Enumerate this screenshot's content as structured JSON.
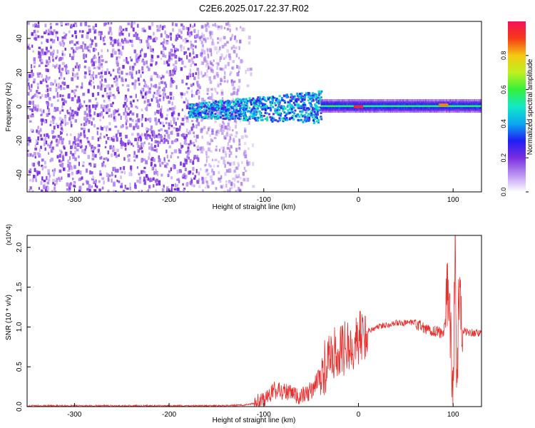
{
  "title": "C2E6.2025.017.22.37.R02",
  "colors": {
    "snr_line": "#e8312f",
    "noise": "#7a2ee0",
    "noise_light": "#c9a8f2",
    "axes": "#000000"
  },
  "chart_data": [
    {
      "type": "heatmap",
      "title": "C2E6.2025.017.22.37.R02",
      "xlabel": "Height of straight line (km)",
      "ylabel": "Frequency (Hz)",
      "xlim": [
        -350,
        130
      ],
      "ylim": [
        -50,
        50
      ],
      "x_ticks": [
        -300,
        -200,
        -100,
        0,
        100
      ],
      "y_ticks": [
        -40,
        -20,
        0,
        20,
        40
      ],
      "grid": false,
      "colorbar": {
        "label": "Normalized spectral amplitude",
        "range": [
          0,
          1
        ],
        "ticks": [
          "0.0",
          "0.2",
          "0.4",
          "0.6",
          "0.8"
        ],
        "colormap": "rainbow (purple to red)"
      },
      "features": [
        {
          "x_range": [
            -350,
            -130
          ],
          "description": "broadband noise across all frequencies",
          "amplitude": 0.1
        },
        {
          "x_range": [
            -180,
            -40
          ],
          "freq_range": [
            -10,
            8
          ],
          "description": "signal band emerging",
          "amplitude": 0.35
        },
        {
          "x_range": [
            -40,
            130
          ],
          "freq_range": [
            -4,
            4
          ],
          "description": "narrow carrier line near 0 Hz",
          "amplitude": 0.5
        },
        {
          "x_range": [
            -5,
            5
          ],
          "freq": 0,
          "amplitude": 0.95
        },
        {
          "x_range": [
            85,
            95
          ],
          "freq": 1,
          "amplitude": 0.85
        }
      ]
    },
    {
      "type": "line",
      "xlabel": "Height of straight line (km)",
      "ylabel": "SNR (10 * v/v)",
      "y_multiplier_label": "(x10^4)",
      "xlim": [
        -350,
        130
      ],
      "ylim": [
        0,
        2.15
      ],
      "x_ticks": [
        -300,
        -200,
        -100,
        0,
        100
      ],
      "y_ticks": [
        "0.0",
        "0.5",
        "1.0",
        "1.5",
        "2.0"
      ],
      "grid": false,
      "series": [
        {
          "color": "#e8312f",
          "x": [
            -350,
            -250,
            -150,
            -120,
            -100,
            -90,
            -80,
            -70,
            -60,
            -50,
            -40,
            -30,
            -20,
            -10,
            0,
            10,
            20,
            30,
            40,
            50,
            60,
            70,
            80,
            90,
            95,
            100,
            102,
            104,
            106,
            110,
            120,
            130
          ],
          "y": [
            0.01,
            0.01,
            0.01,
            0.02,
            0.06,
            0.2,
            0.2,
            0.15,
            0.12,
            0.2,
            0.4,
            0.6,
            0.7,
            0.75,
            0.85,
            0.95,
            1.0,
            1.03,
            1.05,
            1.05,
            1.05,
            0.97,
            0.95,
            0.92,
            1.6,
            0.1,
            2.1,
            0.1,
            1.5,
            0.95,
            0.93,
            0.92
          ]
        }
      ]
    }
  ]
}
